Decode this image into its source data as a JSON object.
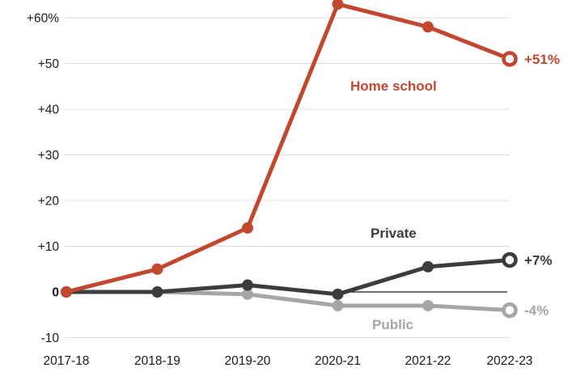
{
  "chart_data": {
    "type": "line",
    "categories": [
      "2017-18",
      "2018-19",
      "2019-20",
      "2020-21",
      "2021-22",
      "2022-23"
    ],
    "y_ticks": [
      {
        "label": "+60%",
        "value": 60
      },
      {
        "label": "+50",
        "value": 50
      },
      {
        "label": "+40",
        "value": 40
      },
      {
        "label": "+30",
        "value": 30
      },
      {
        "label": "+20",
        "value": 20
      },
      {
        "label": "+10",
        "value": 10
      },
      {
        "label": "0",
        "value": 0
      },
      {
        "label": "-10",
        "value": -10
      }
    ],
    "ylim": [
      -10,
      64
    ],
    "grid": "horizontal",
    "legend_position": "inline-labels-on-lines",
    "series": [
      {
        "name": "Home school",
        "color": "#c1472e",
        "values": [
          0,
          5,
          14,
          63,
          58,
          51
        ],
        "end_label": "+51%"
      },
      {
        "name": "Private",
        "color": "#3c3c3c",
        "values": [
          0,
          0,
          1.5,
          -0.5,
          5.5,
          7
        ],
        "end_label": "+7%"
      },
      {
        "name": "Public",
        "color": "#a6a6a6",
        "values": [
          0,
          0,
          -0.5,
          -3,
          -3,
          -4
        ],
        "end_label": "-4%"
      }
    ],
    "colors": {
      "gridline": "#dcdcdc",
      "zero_line": "#1b1b1b",
      "axis_text": "#1a1a1a"
    }
  }
}
